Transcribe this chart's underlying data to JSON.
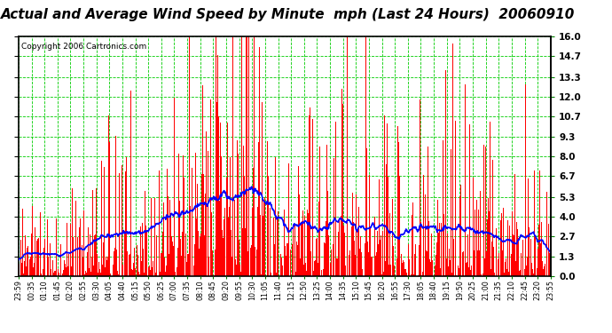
{
  "title": "Actual and Average Wind Speed by Minute  mph (Last 24 Hours)  20060910",
  "copyright": "Copyright 2006 Cartronics.com",
  "yticks": [
    0.0,
    1.3,
    2.7,
    4.0,
    5.3,
    6.7,
    8.0,
    9.3,
    10.7,
    12.0,
    13.3,
    14.7,
    16.0
  ],
  "ylim": [
    0.0,
    16.0
  ],
  "bg_color": "#ffffff",
  "bar_color": "#ff0000",
  "line_color": "#0000ff",
  "grid_color": "#00cc00",
  "title_fontsize": 11,
  "copyright_fontsize": 6.5,
  "n_minutes": 1440,
  "xtick_labels": [
    "23:59",
    "00:35",
    "01:10",
    "01:45",
    "02:20",
    "02:55",
    "03:30",
    "04:05",
    "04:40",
    "05:15",
    "05:50",
    "06:25",
    "07:00",
    "07:35",
    "08:10",
    "08:45",
    "09:20",
    "09:55",
    "10:30",
    "11:05",
    "11:40",
    "12:15",
    "12:50",
    "13:25",
    "14:00",
    "14:35",
    "15:10",
    "15:45",
    "16:20",
    "16:55",
    "17:30",
    "18:05",
    "18:40",
    "19:15",
    "19:50",
    "20:25",
    "21:00",
    "21:35",
    "22:10",
    "22:45",
    "23:20",
    "23:55"
  ]
}
